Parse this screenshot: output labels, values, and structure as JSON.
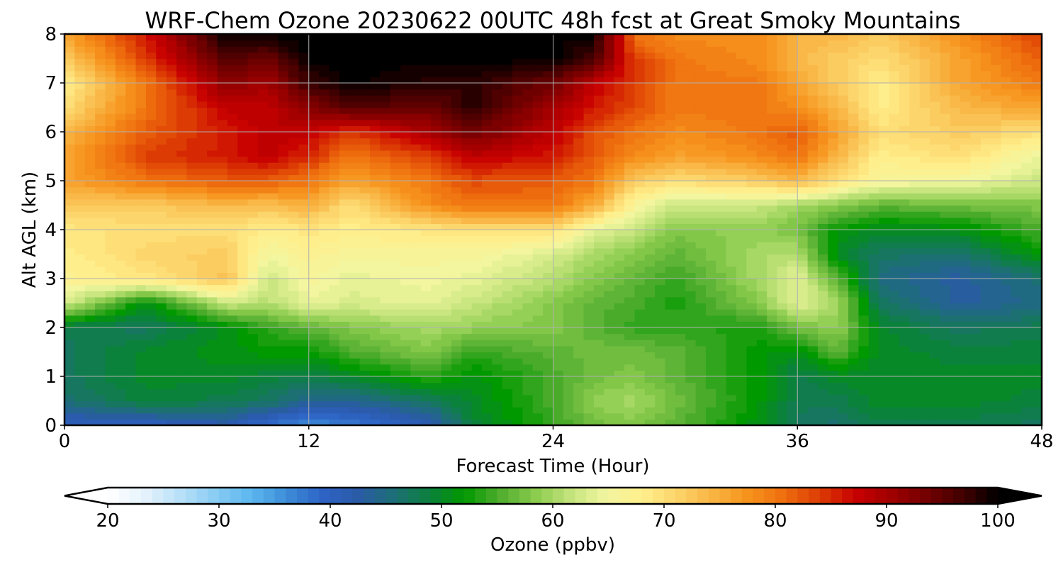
{
  "chart_data": {
    "type": "heatmap",
    "title": "WRF-Chem Ozone  20230622 00UTC 48h fcst at Great Smoky Mountains",
    "xlabel": "Forecast Time (Hour)",
    "ylabel": "Alt AGL (km)",
    "xlim": [
      0,
      48
    ],
    "ylim": [
      0,
      8
    ],
    "x_ticks": [
      "0",
      "12",
      "24",
      "36",
      "48"
    ],
    "y_ticks": [
      "0",
      "1",
      "2",
      "3",
      "4",
      "5",
      "6",
      "7",
      "8"
    ],
    "grid": true,
    "colorbar": {
      "label": "Ozone  (ppbv)",
      "min": 20,
      "max": 100,
      "ticks": [
        "20",
        "30",
        "40",
        "50",
        "60",
        "70",
        "80",
        "90",
        "100"
      ],
      "extend": "both",
      "colors": [
        "#ffffff",
        "#e6f3fc",
        "#b9e1f8",
        "#89ccf3",
        "#5db8ef",
        "#3d8ed8",
        "#2e64c6",
        "#2a5aa8",
        "#1e6e78",
        "#0c8040",
        "#009900",
        "#4fac2e",
        "#8acb4d",
        "#c4e47c",
        "#f2f6a0",
        "#ffef8c",
        "#fcd46a",
        "#f9b442",
        "#f6921c",
        "#ee6e0e",
        "#dc3c04",
        "#c80000",
        "#a00000",
        "#740000",
        "#420000",
        "#000000"
      ]
    },
    "x": [
      0,
      4,
      8,
      10,
      12,
      14,
      18,
      20,
      24,
      26,
      28,
      30,
      34,
      36,
      38,
      40,
      44,
      48
    ],
    "y": [
      0,
      0.5,
      1,
      1.5,
      2,
      2.5,
      3,
      3.5,
      4,
      4.5,
      5,
      5.5,
      6,
      6.5,
      7,
      7.5,
      8
    ],
    "z": [
      [
        40,
        40,
        42,
        38,
        36,
        37,
        41,
        49,
        54,
        57,
        58,
        56,
        51,
        47,
        46,
        48,
        48,
        47
      ],
      [
        46,
        49,
        48,
        47,
        44,
        44,
        47,
        50,
        55,
        59,
        60,
        57,
        52,
        48,
        48,
        50,
        50,
        49
      ],
      [
        47,
        50,
        50,
        49,
        48,
        50,
        54,
        51,
        55,
        57,
        58,
        56,
        52,
        48,
        50,
        50,
        50,
        50
      ],
      [
        47,
        50,
        51,
        52,
        52,
        55,
        58,
        54,
        56,
        57,
        57,
        56,
        52,
        51,
        56,
        50,
        49,
        49
      ],
      [
        48,
        47,
        51,
        54,
        56,
        58,
        60,
        59,
        58,
        56,
        54,
        54,
        53,
        57,
        59,
        50,
        47,
        48
      ],
      [
        63,
        51,
        62,
        61,
        64,
        63,
        64,
        62,
        58,
        56,
        55,
        53,
        58,
        64,
        60,
        47,
        43,
        45
      ],
      [
        67,
        69,
        73,
        62,
        66,
        64,
        65,
        64,
        61,
        58,
        56,
        54,
        60,
        64,
        56,
        45,
        43,
        46
      ],
      [
        68,
        71,
        72,
        65,
        67,
        66,
        66,
        66,
        63,
        60,
        58,
        56,
        60,
        61,
        50,
        47,
        46,
        52
      ],
      [
        69,
        70,
        70,
        68,
        69,
        68,
        69,
        70,
        70,
        64,
        62,
        58,
        59,
        57,
        52,
        50,
        51,
        55
      ],
      [
        72,
        72,
        74,
        73,
        75,
        70,
        78,
        80,
        80,
        75,
        66,
        62,
        62,
        60,
        58,
        56,
        57,
        58
      ],
      [
        76,
        80,
        82,
        82,
        80,
        76,
        80,
        83,
        82,
        80,
        72,
        70,
        72,
        74,
        70,
        66,
        65,
        62
      ],
      [
        76,
        84,
        86,
        88,
        85,
        80,
        84,
        88,
        86,
        82,
        78,
        76,
        78,
        80,
        74,
        68,
        70,
        64
      ],
      [
        74,
        82,
        86,
        88,
        88,
        84,
        90,
        94,
        88,
        83,
        80,
        78,
        80,
        82,
        76,
        70,
        72,
        70
      ],
      [
        70,
        80,
        88,
        88,
        92,
        96,
        94,
        98,
        90,
        86,
        83,
        80,
        80,
        78,
        74,
        68,
        74,
        76
      ],
      [
        68,
        80,
        92,
        90,
        97,
        100,
        98,
        98,
        94,
        88,
        84,
        80,
        80,
        76,
        72,
        68,
        76,
        80
      ],
      [
        72,
        84,
        96,
        94,
        100,
        100,
        100,
        100,
        100,
        96,
        84,
        80,
        78,
        74,
        72,
        70,
        76,
        82
      ],
      [
        76,
        86,
        100,
        100,
        100,
        100,
        100,
        100,
        100,
        100,
        80,
        78,
        78,
        74,
        74,
        72,
        78,
        84
      ]
    ]
  }
}
